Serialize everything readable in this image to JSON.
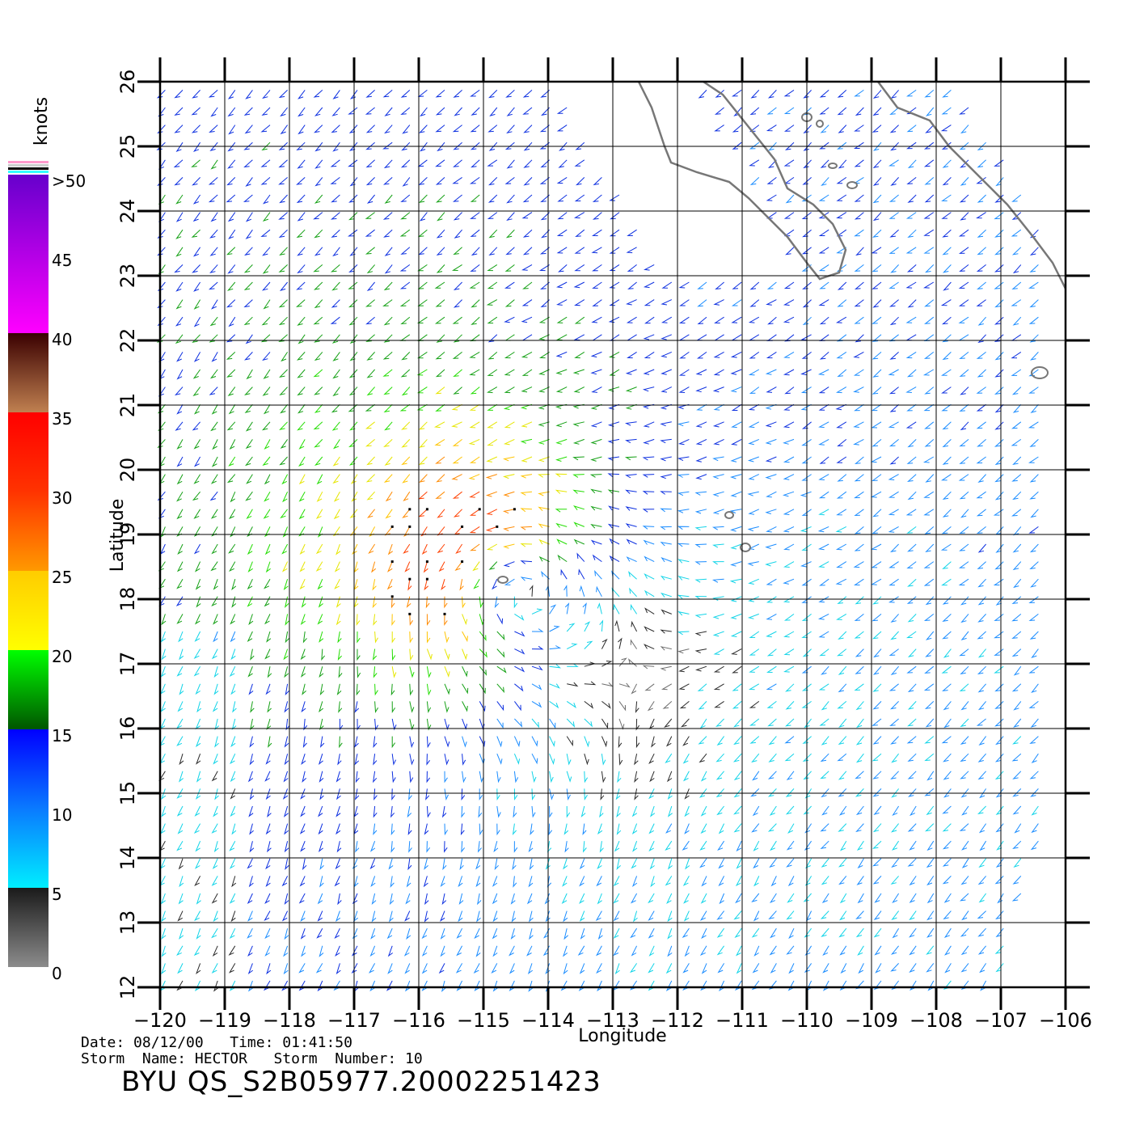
{
  "map": {
    "longitude_ticks": [
      "−120",
      "−119",
      "−118",
      "−117",
      "−116",
      "−115",
      "−114",
      "−113",
      "−112",
      "−111",
      "−110",
      "−109",
      "−108",
      "−107",
      "−106"
    ],
    "latitude_ticks": [
      "12",
      "13",
      "14",
      "15",
      "16",
      "17",
      "18",
      "19",
      "20",
      "21",
      "22",
      "23",
      "24",
      "25",
      "26"
    ],
    "x_label": "Longitude",
    "y_label": "Latitude",
    "lon_range": [
      -120,
      -106
    ],
    "lat_range": [
      12,
      26
    ],
    "storm_center": {
      "lon": -114.7,
      "lat": 18.3
    },
    "coast_color": "#777777",
    "grid_color": "#000000"
  },
  "colorbar": {
    "unit": "knots",
    "labels": [
      ">50",
      "45",
      "40",
      "35",
      "30",
      "25",
      "20",
      "15",
      "10",
      "5",
      "0"
    ],
    "stops": [
      {
        "v": 0,
        "color": "#8c8c8c"
      },
      {
        "v": 5,
        "color": "#1a1a1a"
      },
      {
        "v": 5,
        "color": "#00eeff"
      },
      {
        "v": 10,
        "color": "#0a7aff"
      },
      {
        "v": 15,
        "color": "#0000ff"
      },
      {
        "v": 15,
        "color": "#005500"
      },
      {
        "v": 20,
        "color": "#00ff00"
      },
      {
        "v": 20,
        "color": "#ffff00"
      },
      {
        "v": 25,
        "color": "#ffcc00"
      },
      {
        "v": 25,
        "color": "#ff9900"
      },
      {
        "v": 30,
        "color": "#ff3300"
      },
      {
        "v": 35,
        "color": "#ff0000"
      },
      {
        "v": 35,
        "color": "#c08050"
      },
      {
        "v": 40,
        "color": "#3a0000"
      },
      {
        "v": 40,
        "color": "#ff00ff"
      },
      {
        "v": 50,
        "color": "#6600cc"
      }
    ]
  },
  "info": {
    "date_label": "Date:",
    "date": "08/12/00",
    "time_label": "Time:",
    "time": "01:41:50",
    "storm_name_label": "Storm  Name:",
    "storm_name": "HECTOR",
    "storm_number_label": "Storm  Number:",
    "storm_number": "10",
    "product_id": "BYU  QS_S2B05977.20002251423"
  }
}
